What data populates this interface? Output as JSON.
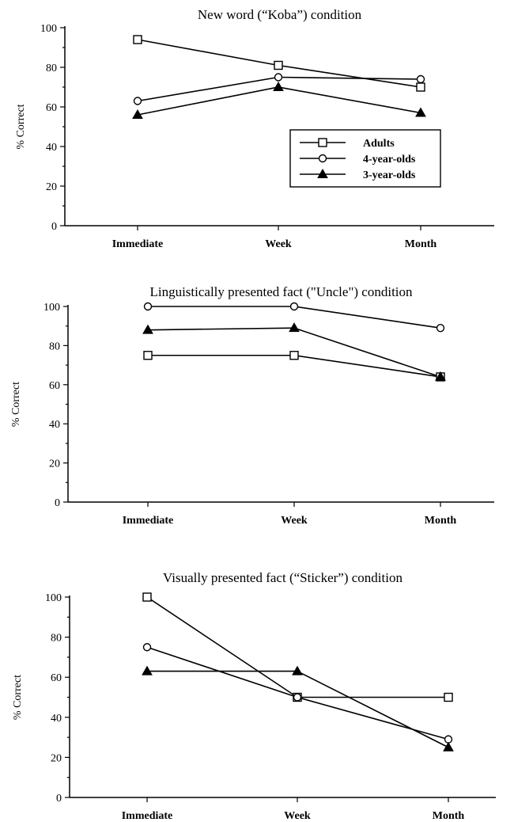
{
  "figure": {
    "legend_entries": [
      "Adults",
      "4-year-olds",
      "3-year-olds"
    ]
  },
  "chart_data": [
    {
      "type": "line",
      "title": "New word (“Koba”) condition",
      "xlabel": "",
      "ylabel": "% Correct",
      "categories": [
        "Immediate",
        "Week",
        "Month"
      ],
      "ylim": [
        0,
        100
      ],
      "yticks": [
        0,
        20,
        40,
        60,
        80,
        100
      ],
      "grid": false,
      "legend": "inside-right",
      "series": [
        {
          "name": "Adults",
          "marker": "square-open",
          "values": [
            94,
            81,
            70
          ]
        },
        {
          "name": "4-year-olds",
          "marker": "circle-open",
          "values": [
            63,
            75,
            74
          ]
        },
        {
          "name": "3-year-olds",
          "marker": "triangle-filled",
          "values": [
            56,
            70,
            57
          ]
        }
      ]
    },
    {
      "type": "line",
      "title": "Linguistically presented fact (\"Uncle\") condition",
      "xlabel": "",
      "ylabel": "% Correct",
      "categories": [
        "Immediate",
        "Week",
        "Month"
      ],
      "ylim": [
        0,
        100
      ],
      "yticks": [
        0,
        20,
        40,
        60,
        80,
        100
      ],
      "grid": false,
      "legend": "none",
      "series": [
        {
          "name": "Adults",
          "marker": "square-open",
          "values": [
            75,
            75,
            64
          ]
        },
        {
          "name": "4-year-olds",
          "marker": "circle-open",
          "values": [
            100,
            100,
            89
          ]
        },
        {
          "name": "3-year-olds",
          "marker": "triangle-filled",
          "values": [
            88,
            89,
            64
          ]
        }
      ]
    },
    {
      "type": "line",
      "title": "Visually presented fact (“Sticker”) condition",
      "xlabel": "",
      "ylabel": "% Correct",
      "categories": [
        "Immediate",
        "Week",
        "Month"
      ],
      "ylim": [
        0,
        100
      ],
      "yticks": [
        0,
        20,
        40,
        60,
        80,
        100
      ],
      "grid": false,
      "legend": "none",
      "series": [
        {
          "name": "Adults",
          "marker": "square-open",
          "values": [
            100,
            50,
            50
          ]
        },
        {
          "name": "4-year-olds",
          "marker": "circle-open",
          "values": [
            75,
            50,
            29
          ]
        },
        {
          "name": "3-year-olds",
          "marker": "triangle-filled",
          "values": [
            63,
            63,
            25
          ]
        }
      ]
    }
  ]
}
